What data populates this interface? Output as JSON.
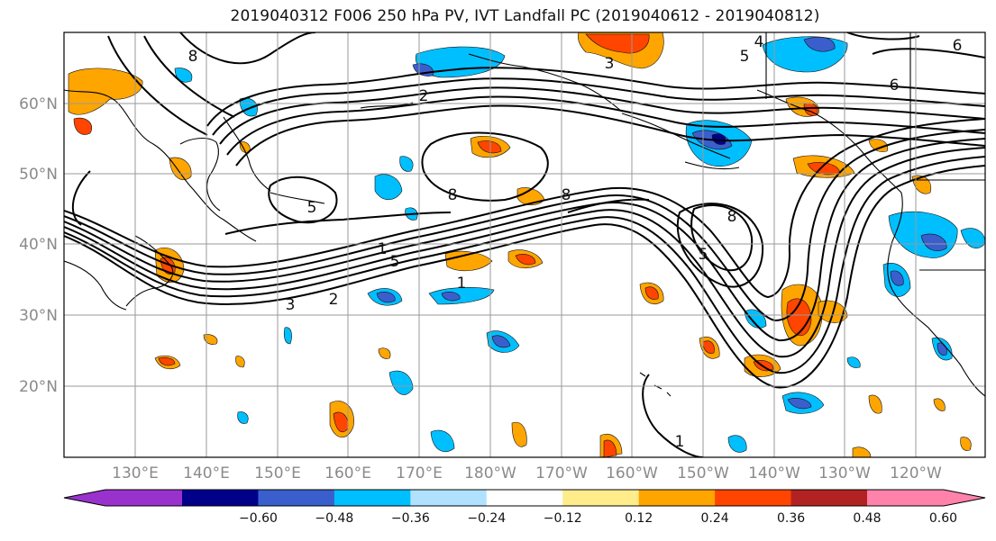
{
  "title": "2019040312 F006 250 hPa PV, IVT Landfall PC (2019040612 - 2019040812)",
  "map": {
    "lat_labels": [
      "60°N",
      "50°N",
      "40°N",
      "30°N",
      "20°N"
    ],
    "lon_labels": [
      "130°E",
      "140°E",
      "150°E",
      "160°E",
      "170°E",
      "180°W",
      "170°W",
      "160°W",
      "150°W",
      "140°W",
      "130°W",
      "120°W"
    ],
    "contour_labels": [
      "8",
      "2",
      "5",
      "5",
      "8",
      "8",
      "1",
      "5",
      "3",
      "2",
      "1",
      "8",
      "6",
      "1",
      "6",
      "4",
      "5",
      "3"
    ]
  },
  "colorbar": {
    "tick_labels": [
      "−0.60",
      "−0.48",
      "−0.36",
      "−0.24",
      "−0.12",
      "0.12",
      "0.24",
      "0.36",
      "0.48",
      "0.60"
    ],
    "colors": [
      "#9932cc",
      "#00008b",
      "#3a5fcd",
      "#00bfff",
      "#b0e2ff",
      "#ffffff",
      "#ffec8b",
      "#ffa500",
      "#ff4500",
      "#b22222",
      "#ff82ab"
    ]
  }
}
